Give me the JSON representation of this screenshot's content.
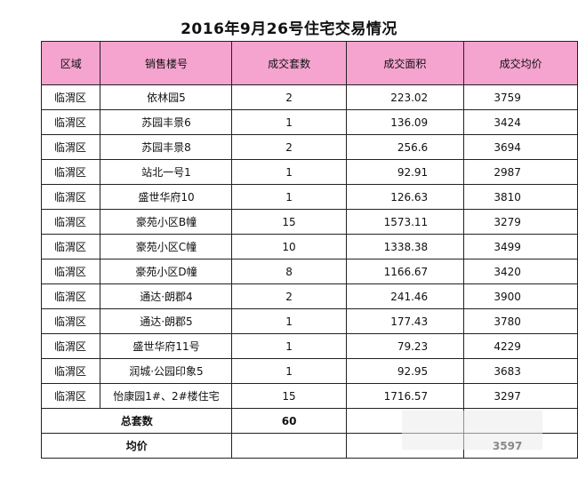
{
  "title": "2016年9月26号住宅交易情况",
  "headers": [
    "区域",
    "销售楼号",
    "成交套数",
    "成交面积",
    "成交均价"
  ],
  "rows": [
    {
      "area": "临渭区",
      "building": "依林园5",
      "units": "2",
      "size": "223.02",
      "price": "3759"
    },
    {
      "area": "临渭区",
      "building": "苏园丰景6",
      "units": "1",
      "size": "136.09",
      "price": "3424"
    },
    {
      "area": "临渭区",
      "building": "苏园丰景8",
      "units": "2",
      "size": "256.6",
      "price": "3694"
    },
    {
      "area": "临渭区",
      "building": "站北一号1",
      "units": "1",
      "size": "92.91",
      "price": "2987"
    },
    {
      "area": "临渭区",
      "building": "盛世华府10",
      "units": "1",
      "size": "126.63",
      "price": "3810"
    },
    {
      "area": "临渭区",
      "building": "豪苑小区B幢",
      "units": "15",
      "size": "1573.11",
      "price": "3279"
    },
    {
      "area": "临渭区",
      "building": "豪苑小区C幢",
      "units": "10",
      "size": "1338.38",
      "price": "3499"
    },
    {
      "area": "临渭区",
      "building": "豪苑小区D幢",
      "units": "8",
      "size": "1166.67",
      "price": "3420"
    },
    {
      "area": "临渭区",
      "building": "通达·朗郡4",
      "units": "2",
      "size": "241.46",
      "price": "3900"
    },
    {
      "area": "临渭区",
      "building": "通达·朗郡5",
      "units": "1",
      "size": "177.43",
      "price": "3780"
    },
    {
      "area": "临渭区",
      "building": "盛世华府11号",
      "units": "1",
      "size": "79.23",
      "price": "4229"
    },
    {
      "area": "临渭区",
      "building": "润城·公园印象5",
      "units": "1",
      "size": "92.95",
      "price": "3683"
    },
    {
      "area": "临渭区",
      "building": "怡康园1#、2#楼住宅",
      "units": "15",
      "size": "1716.57",
      "price": "3297"
    }
  ],
  "total": {
    "label": "总套数",
    "units": "60"
  },
  "average": {
    "label": "均价",
    "price": "3597"
  },
  "colors": {
    "header_bg": "#f5a3cf",
    "border": "#222222"
  }
}
